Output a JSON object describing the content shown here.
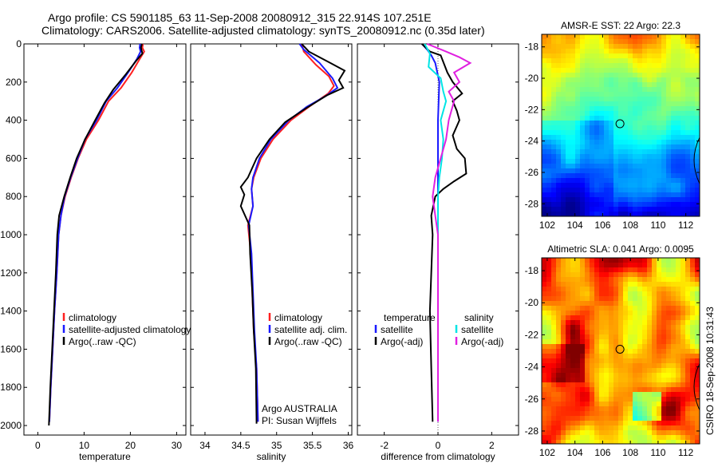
{
  "header": {
    "title_line1": "Argo profile: CS 5901185_63 11-Sep-2008 20080912_315 22.914S 107.251E",
    "title_line2": "Climatology: CARS2006. Satellite-adjusted climatology: synTS_20080912.nc (0.35d later)"
  },
  "side_label": "CSIRO 18-Sep-2008 10:31:43",
  "colors": {
    "climatology": "#ff2020",
    "satellite": "#1a1aff",
    "argo": "#000000",
    "salinity_satellite": "#00e5e5",
    "salinity_argo": "#e020e0"
  },
  "chart_data": [
    {
      "type": "line",
      "xlabel": "temperature",
      "ylabel": "",
      "xlim": [
        -3,
        32
      ],
      "ylim": [
        2050,
        0
      ],
      "x_ticks": [
        "0",
        "10",
        "20",
        "30"
      ],
      "y_ticks": [
        "0",
        "200",
        "400",
        "600",
        "800",
        "1000",
        "1200",
        "1400",
        "1600",
        "1800",
        "2000"
      ],
      "legend": [
        "climatology",
        "satellite-adjusted climatology",
        "Argo(..raw -QC)"
      ],
      "series": [
        {
          "name": "climatology",
          "color": "#ff2020",
          "points": [
            [
              22.7,
              0
            ],
            [
              22.6,
              20
            ],
            [
              23.0,
              40
            ],
            [
              22.0,
              80
            ],
            [
              20.3,
              150
            ],
            [
              18.0,
              230
            ],
            [
              15.3,
              300
            ],
            [
              13.1,
              400
            ],
            [
              10.5,
              500
            ],
            [
              8.7,
              600
            ],
            [
              7.2,
              700
            ],
            [
              5.9,
              800
            ],
            [
              5.0,
              900
            ],
            [
              4.5,
              1000
            ],
            [
              4.1,
              1200
            ],
            [
              3.6,
              1400
            ],
            [
              3.2,
              1600
            ],
            [
              2.8,
              1800
            ],
            [
              2.5,
              1980
            ]
          ]
        },
        {
          "name": "satellite-adjusted climatology",
          "color": "#1a1aff",
          "points": [
            [
              22.1,
              0
            ],
            [
              22.0,
              20
            ],
            [
              22.2,
              40
            ],
            [
              21.4,
              80
            ],
            [
              19.5,
              150
            ],
            [
              17.2,
              230
            ],
            [
              14.8,
              300
            ],
            [
              12.7,
              400
            ],
            [
              10.2,
              500
            ],
            [
              8.6,
              600
            ],
            [
              7.1,
              700
            ],
            [
              5.8,
              800
            ],
            [
              5.0,
              900
            ],
            [
              4.5,
              1000
            ],
            [
              4.1,
              1200
            ],
            [
              3.6,
              1400
            ],
            [
              3.2,
              1600
            ],
            [
              2.8,
              1800
            ],
            [
              2.5,
              1980
            ]
          ]
        },
        {
          "name": "Argo(..raw -QC)",
          "color": "#000000",
          "points": [
            [
              22.5,
              0
            ],
            [
              22.3,
              20
            ],
            [
              22.6,
              50
            ],
            [
              21.2,
              90
            ],
            [
              19.0,
              160
            ],
            [
              16.3,
              240
            ],
            [
              14.4,
              310
            ],
            [
              12.4,
              400
            ],
            [
              10.2,
              500
            ],
            [
              8.4,
              600
            ],
            [
              7.0,
              700
            ],
            [
              5.7,
              800
            ],
            [
              4.6,
              900
            ],
            [
              4.2,
              1000
            ],
            [
              3.9,
              1200
            ],
            [
              3.5,
              1400
            ],
            [
              3.1,
              1600
            ],
            [
              2.7,
              1800
            ],
            [
              2.4,
              2000
            ]
          ]
        }
      ]
    },
    {
      "type": "line",
      "xlabel": "salinity",
      "ylabel": "",
      "xlim": [
        33.8,
        36.05
      ],
      "ylim": [
        2050,
        0
      ],
      "x_ticks": [
        "34",
        "34.5",
        "35",
        "35.5",
        "36"
      ],
      "legend": [
        "climatology",
        "satellite adj. clim.",
        "Argo(..raw -QC)"
      ],
      "annotation": [
        "Argo AUSTRALIA",
        "PI: Susan Wijffels"
      ],
      "series": [
        {
          "name": "climatology",
          "color": "#ff2020",
          "points": [
            [
              35.35,
              0
            ],
            [
              35.38,
              40
            ],
            [
              35.55,
              110
            ],
            [
              35.73,
              170
            ],
            [
              35.8,
              220
            ],
            [
              35.72,
              260
            ],
            [
              35.45,
              330
            ],
            [
              35.2,
              400
            ],
            [
              34.95,
              500
            ],
            [
              34.78,
              600
            ],
            [
              34.68,
              700
            ],
            [
              34.65,
              760
            ],
            [
              34.67,
              850
            ],
            [
              34.6,
              950
            ],
            [
              34.64,
              1100
            ],
            [
              34.66,
              1300
            ],
            [
              34.68,
              1500
            ],
            [
              34.72,
              1700
            ],
            [
              34.74,
              1980
            ]
          ]
        },
        {
          "name": "satellite adj. clim.",
          "color": "#1a1aff",
          "points": [
            [
              35.32,
              0
            ],
            [
              35.38,
              30
            ],
            [
              35.6,
              100
            ],
            [
              35.78,
              180
            ],
            [
              35.85,
              230
            ],
            [
              35.7,
              270
            ],
            [
              35.42,
              330
            ],
            [
              35.17,
              400
            ],
            [
              34.92,
              500
            ],
            [
              34.76,
              600
            ],
            [
              34.67,
              700
            ],
            [
              34.65,
              760
            ],
            [
              34.67,
              850
            ],
            [
              34.61,
              950
            ],
            [
              34.65,
              1100
            ],
            [
              34.67,
              1300
            ],
            [
              34.69,
              1500
            ],
            [
              34.72,
              1700
            ],
            [
              34.74,
              1980
            ]
          ]
        },
        {
          "name": "Argo(..raw -QC)",
          "color": "#000000",
          "points": [
            [
              35.35,
              0
            ],
            [
              35.45,
              40
            ],
            [
              35.75,
              100
            ],
            [
              35.95,
              140
            ],
            [
              35.87,
              190
            ],
            [
              35.93,
              230
            ],
            [
              35.7,
              270
            ],
            [
              35.4,
              340
            ],
            [
              35.12,
              410
            ],
            [
              34.9,
              500
            ],
            [
              34.72,
              600
            ],
            [
              34.6,
              700
            ],
            [
              34.5,
              750
            ],
            [
              34.55,
              790
            ],
            [
              34.5,
              850
            ],
            [
              34.62,
              950
            ],
            [
              34.63,
              1100
            ],
            [
              34.66,
              1300
            ],
            [
              34.68,
              1500
            ],
            [
              34.71,
              1700
            ],
            [
              34.72,
              1990
            ]
          ]
        }
      ]
    },
    {
      "type": "line",
      "xlabel": "difference from climatology",
      "ylabel": "",
      "xlim": [
        -3,
        3
      ],
      "ylim": [
        2050,
        0
      ],
      "x_ticks": [
        "-2",
        "0",
        "2"
      ],
      "legend": [
        "temperature",
        "satellite",
        "Argo(-adj)",
        "salinity",
        "satellite",
        "Argo(-adj)"
      ],
      "series": [
        {
          "name": "temperature satellite",
          "color": "#1a1aff",
          "points": [
            [
              -0.6,
              0
            ],
            [
              -0.4,
              30
            ],
            [
              -0.25,
              60
            ],
            [
              -0.1,
              100
            ],
            [
              0.05,
              200
            ],
            [
              0.0,
              400
            ],
            [
              0.0,
              800
            ],
            [
              0.0,
              1200
            ],
            [
              0.0,
              1600
            ],
            [
              0.0,
              1980
            ]
          ]
        },
        {
          "name": "temperature Argo(-adj)",
          "color": "#000000",
          "points": [
            [
              -0.6,
              0
            ],
            [
              -0.3,
              40
            ],
            [
              0.1,
              60
            ],
            [
              0.35,
              150
            ],
            [
              0.55,
              200
            ],
            [
              0.9,
              260
            ],
            [
              0.55,
              300
            ],
            [
              0.7,
              350
            ],
            [
              0.8,
              400
            ],
            [
              0.55,
              480
            ],
            [
              0.7,
              550
            ],
            [
              1.0,
              600
            ],
            [
              1.05,
              680
            ],
            [
              0.6,
              720
            ],
            [
              0.2,
              760
            ],
            [
              -0.1,
              800
            ],
            [
              -0.25,
              900
            ],
            [
              -0.2,
              1000
            ],
            [
              -0.3,
              1400
            ],
            [
              -0.25,
              1700
            ],
            [
              -0.2,
              1980
            ]
          ]
        },
        {
          "name": "salinity satellite",
          "color": "#00e5e5",
          "points": [
            [
              -0.5,
              0
            ],
            [
              -0.3,
              50
            ],
            [
              -0.35,
              120
            ],
            [
              0.1,
              180
            ],
            [
              0.2,
              250
            ],
            [
              0.3,
              300
            ],
            [
              0.1,
              400
            ],
            [
              0.2,
              500
            ],
            [
              0.15,
              600
            ],
            [
              0.05,
              700
            ],
            [
              0.0,
              800
            ],
            [
              0.0,
              1200
            ],
            [
              0.0,
              1600
            ],
            [
              0.0,
              1980
            ]
          ]
        },
        {
          "name": "salinity Argo(-adj)",
          "color": "#e020e0",
          "points": [
            [
              -0.4,
              0
            ],
            [
              0.3,
              40
            ],
            [
              0.8,
              70
            ],
            [
              1.2,
              100
            ],
            [
              0.6,
              150
            ],
            [
              0.8,
              200
            ],
            [
              0.4,
              250
            ],
            [
              0.6,
              300
            ],
            [
              0.5,
              350
            ],
            [
              0.4,
              400
            ],
            [
              0.3,
              500
            ],
            [
              0.1,
              600
            ],
            [
              -0.1,
              700
            ],
            [
              -0.2,
              800
            ],
            [
              -0.1,
              900
            ],
            [
              0.0,
              1000
            ],
            [
              0.0,
              1500
            ],
            [
              0.0,
              1980
            ]
          ]
        }
      ]
    },
    {
      "type": "heatmap",
      "title": "AMSR-E SST: 22 Argo: 22.3",
      "x_ticks": [
        "102",
        "104",
        "106",
        "108",
        "110",
        "112"
      ],
      "y_ticks": [
        "-18",
        "-20",
        "-22",
        "-24",
        "-26",
        "-28"
      ],
      "xlim": [
        101.6,
        113
      ],
      "ylim": [
        -28.8,
        -17.2
      ],
      "marker": {
        "lon": 107.25,
        "lat": -22.9
      }
    },
    {
      "type": "heatmap",
      "title": "Altimetric SLA: 0.041 Argo: 0.0095",
      "x_ticks": [
        "102",
        "104",
        "106",
        "108",
        "110",
        "112"
      ],
      "y_ticks": [
        "-18",
        "-20",
        "-22",
        "-24",
        "-26",
        "-28"
      ],
      "xlim": [
        101.6,
        113
      ],
      "ylim": [
        -28.8,
        -17.2
      ],
      "marker": {
        "lon": 107.25,
        "lat": -22.9
      }
    }
  ]
}
